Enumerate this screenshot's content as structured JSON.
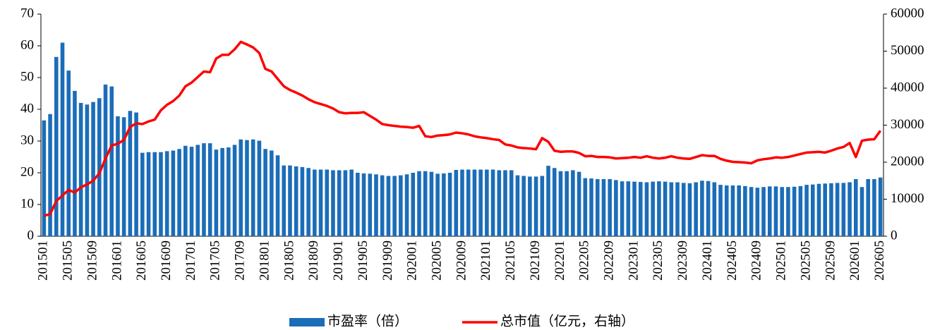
{
  "chart_data": {
    "type": "bar_line",
    "categories": [
      "201501",
      null,
      null,
      null,
      "201505",
      null,
      null,
      null,
      "201509",
      null,
      null,
      null,
      "201601",
      null,
      null,
      null,
      "201605",
      null,
      null,
      null,
      "201609",
      null,
      null,
      null,
      "201701",
      null,
      null,
      null,
      "201705",
      null,
      null,
      null,
      "201709",
      null,
      null,
      null,
      "201801",
      null,
      null,
      null,
      "201805",
      null,
      null,
      null,
      "201809",
      null,
      null,
      null,
      "201901",
      null,
      null,
      null,
      "201905",
      null,
      null,
      null,
      "201909",
      null,
      null,
      null,
      "202001",
      null,
      null,
      null,
      "202005",
      null,
      null,
      null,
      "202009",
      null,
      null,
      null,
      "202101",
      null,
      null,
      null,
      "202105",
      null,
      null,
      null,
      "202109",
      null,
      null,
      null,
      "202201",
      null,
      null,
      null,
      "202205",
      null,
      null,
      null,
      "202209",
      null,
      null,
      null,
      "202301",
      null,
      null,
      null,
      "202305",
      null,
      null,
      null,
      "202309",
      null,
      null,
      null,
      "202401",
      null,
      null,
      null,
      "202405",
      null,
      null,
      null,
      "202409",
      null,
      null,
      null,
      "202501",
      null,
      null,
      null,
      "202505",
      null,
      null,
      null,
      "202509",
      null,
      null,
      null,
      "202601",
      null,
      null,
      null,
      "202605"
    ],
    "series": [
      {
        "name": "市盈率（倍）",
        "color": "#1b6db8",
        "type": "bar",
        "values": [
          36.5,
          38.5,
          56.5,
          61,
          52.2,
          45.8,
          42,
          41.5,
          42.3,
          43.5,
          47.8,
          47.2,
          37.8,
          37.5,
          39.5,
          39,
          26.3,
          26.5,
          26.5,
          26.5,
          26.8,
          27,
          27.5,
          28.5,
          28.2,
          28.8,
          29.3,
          29.3,
          27.3,
          27.8,
          28,
          28.8,
          30.5,
          30.3,
          30.5,
          30.1,
          27.5,
          27,
          25.5,
          22.3,
          22.3,
          22,
          21.8,
          21.5,
          21,
          21,
          21,
          20.8,
          20.8,
          20.8,
          21,
          20,
          19.8,
          19.7,
          19.5,
          19.2,
          19,
          19,
          19.2,
          19.5,
          20,
          20.5,
          20.5,
          20.3,
          19.7,
          19.8,
          20,
          20.9,
          21,
          21,
          21,
          21,
          21,
          21,
          20.8,
          20.8,
          20.8,
          19.2,
          19,
          18.8,
          18.8,
          19,
          22.2,
          21.5,
          20.5,
          20.5,
          20.8,
          20.3,
          18.3,
          18.2,
          18,
          18,
          18,
          17.7,
          17.3,
          17.3,
          17.2,
          17.1,
          17,
          17.2,
          17.3,
          17.2,
          17,
          17,
          16.8,
          16.7,
          17,
          17.5,
          17.4,
          17,
          16.2,
          16,
          16,
          16,
          15.8,
          15.5,
          15.3,
          15.5,
          15.7,
          15.7,
          15.5,
          15.5,
          15.6,
          15.8,
          16.2,
          16.3,
          16.5,
          16.6,
          16.7,
          16.8,
          16.8,
          17,
          18,
          15.5,
          18,
          18,
          18.5
        ]
      },
      {
        "name": "总市值（亿元，右轴）",
        "color": "#ff0000",
        "type": "line",
        "axis": "y2",
        "values": [
          5500,
          6000,
          9500,
          11000,
          12500,
          11800,
          13200,
          14000,
          15000,
          17000,
          21000,
          24500,
          25000,
          26000,
          29500,
          30500,
          30300,
          31000,
          31500,
          34000,
          35500,
          36500,
          38000,
          40500,
          41500,
          43000,
          44500,
          44300,
          48000,
          49000,
          49000,
          50500,
          52500,
          51800,
          51000,
          49500,
          45200,
          44500,
          42500,
          40500,
          39500,
          38800,
          38000,
          37000,
          36200,
          35700,
          35200,
          34500,
          33500,
          33200,
          33300,
          33300,
          33500,
          32500,
          31500,
          30300,
          30000,
          29800,
          29600,
          29500,
          29300,
          29800,
          27000,
          26800,
          27200,
          27300,
          27500,
          28000,
          27800,
          27500,
          27000,
          26700,
          26500,
          26200,
          26000,
          24800,
          24500,
          24000,
          23800,
          23700,
          23500,
          26500,
          25500,
          23100,
          22800,
          22900,
          22900,
          22500,
          21600,
          21700,
          21400,
          21400,
          21300,
          21000,
          21100,
          21200,
          21400,
          21200,
          21600,
          21200,
          21000,
          21200,
          21600,
          21200,
          21000,
          20900,
          21400,
          21900,
          21700,
          21700,
          20900,
          20400,
          20100,
          20000,
          19900,
          19700,
          20500,
          20800,
          21000,
          21300,
          21200,
          21400,
          21800,
          22200,
          22600,
          22700,
          22800,
          22600,
          23100,
          23700,
          24100,
          25200,
          21400,
          25800,
          26100,
          26200,
          28500
        ]
      }
    ],
    "ylim": [
      0,
      70
    ],
    "yticks": [
      0,
      10,
      20,
      30,
      40,
      50,
      60,
      70
    ],
    "y2lim": [
      0,
      60000
    ],
    "y2ticks": [
      0,
      10000,
      20000,
      30000,
      40000,
      50000,
      60000
    ],
    "legend": "bottom"
  }
}
